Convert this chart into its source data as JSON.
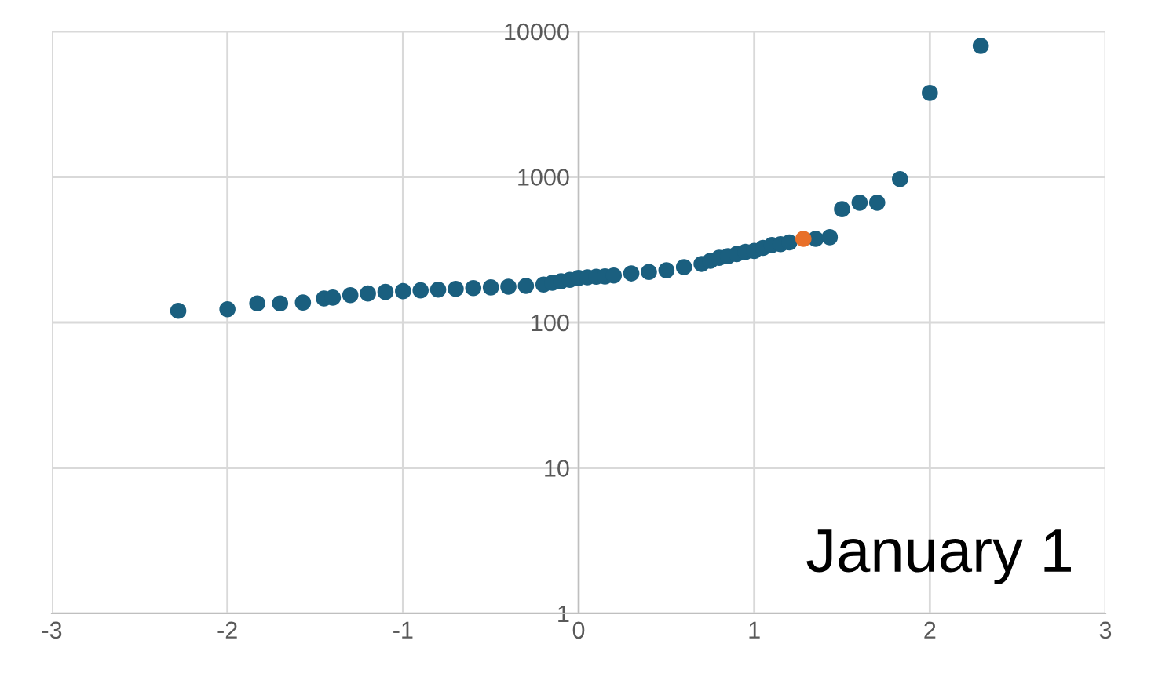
{
  "chart_data": {
    "type": "scatter",
    "log": "y",
    "xlim": [
      -3,
      3
    ],
    "ylim": [
      1,
      10000
    ],
    "xticks": [
      -3,
      -2,
      -1,
      0,
      1,
      2,
      3
    ],
    "yticks": [
      1,
      10,
      100,
      1000,
      10000
    ],
    "grid": true,
    "marker": "circle",
    "annotations": [
      "January 1"
    ],
    "series": [
      {
        "color": "#1a5f7f",
        "x": [
          -2.28,
          -2.0,
          -1.83,
          -1.7,
          -1.57,
          -1.45,
          -1.4,
          -1.3,
          -1.2,
          -1.1,
          -1.0,
          -0.9,
          -0.8,
          -0.7,
          -0.6,
          -0.5,
          -0.4,
          -0.3,
          -0.2,
          -0.15,
          -0.1,
          -0.05,
          0.0,
          0.05,
          0.1,
          0.15,
          0.2,
          0.3,
          0.4,
          0.5,
          0.6,
          0.7,
          0.75,
          0.8,
          0.85,
          0.9,
          0.95,
          1.0,
          1.05,
          1.1,
          1.15,
          1.2,
          1.35,
          1.43,
          1.5,
          1.6,
          1.7,
          1.83,
          2.0,
          2.29
        ],
        "values": [
          120,
          123,
          135,
          135,
          137,
          146,
          148,
          154,
          158,
          162,
          164,
          166,
          168,
          170,
          172,
          174,
          176,
          178,
          182,
          187,
          192,
          196,
          202,
          204,
          206,
          207,
          210,
          217,
          222,
          228,
          240,
          252,
          265,
          278,
          285,
          295,
          305,
          310,
          325,
          340,
          345,
          355,
          375,
          385,
          600,
          665,
          665,
          966,
          3780,
          7950
        ]
      },
      {
        "color": "#e8702a",
        "x": [
          1.28
        ],
        "values": [
          375
        ]
      }
    ]
  }
}
